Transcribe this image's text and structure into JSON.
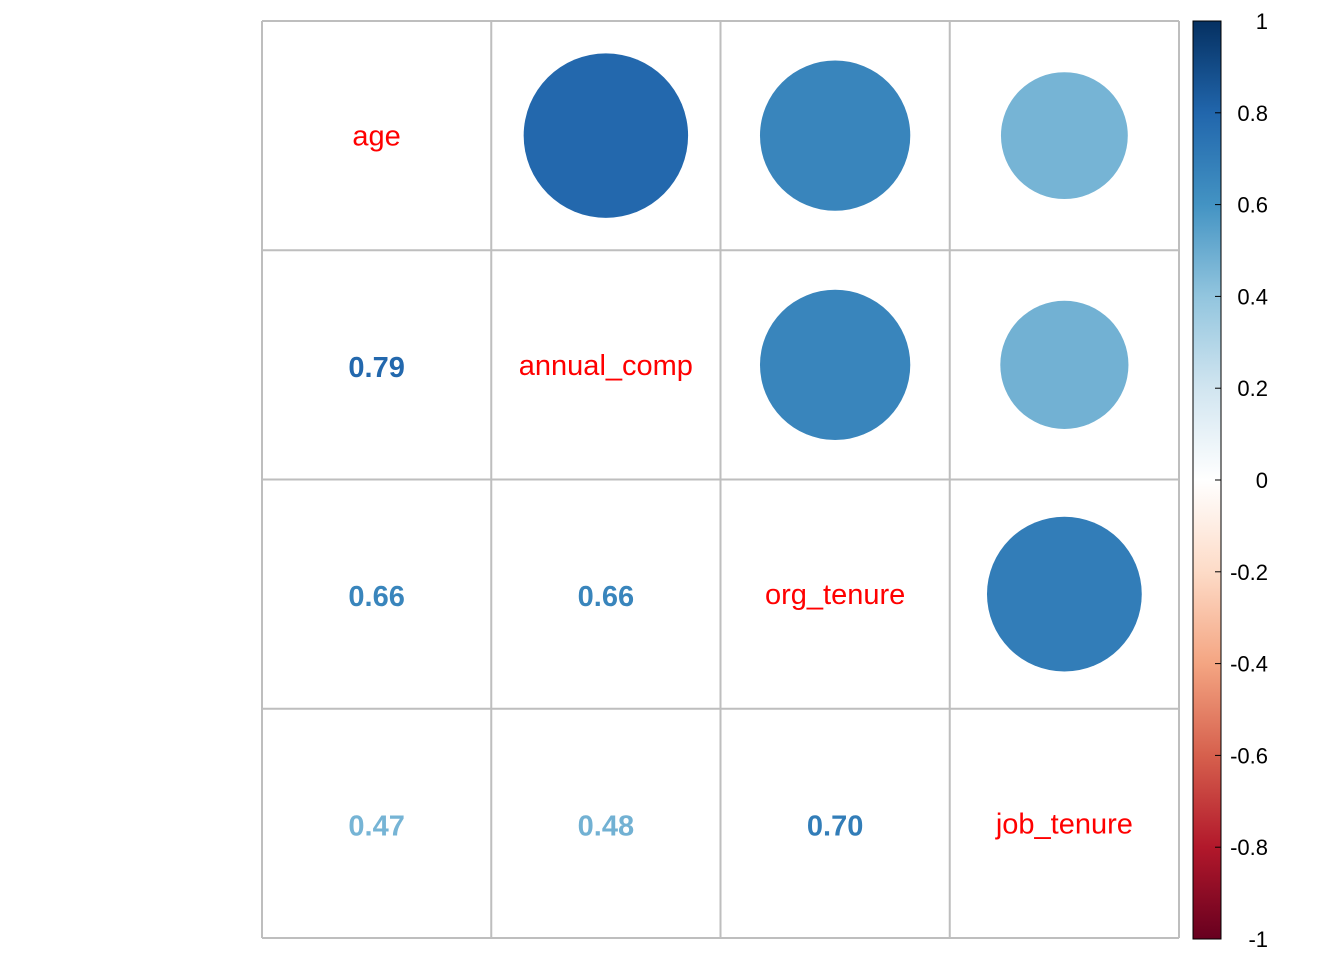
{
  "chart_data": {
    "type": "heatmap",
    "variables": [
      "age",
      "annual_comp",
      "org_tenure",
      "job_tenure"
    ],
    "matrix": [
      [
        1.0,
        0.79,
        0.66,
        0.47
      ],
      [
        0.79,
        1.0,
        0.66,
        0.48
      ],
      [
        0.66,
        0.66,
        1.0,
        0.7
      ],
      [
        0.47,
        0.48,
        0.7,
        1.0
      ]
    ],
    "lower_labels": [
      {
        "row": 1,
        "col": 0,
        "text": "0.79"
      },
      {
        "row": 2,
        "col": 0,
        "text": "0.66"
      },
      {
        "row": 2,
        "col": 1,
        "text": "0.66"
      },
      {
        "row": 3,
        "col": 0,
        "text": "0.47"
      },
      {
        "row": 3,
        "col": 1,
        "text": "0.48"
      },
      {
        "row": 3,
        "col": 2,
        "text": "0.70"
      }
    ],
    "upper_method": "circle",
    "lower_method": "number",
    "diagonal": "variable names",
    "colorbar": {
      "range": [
        -1,
        1
      ],
      "ticks": [
        "1",
        "0.8",
        "0.6",
        "0.4",
        "0.2",
        "0",
        "-0.2",
        "-0.4",
        "-0.6",
        "-0.8",
        "-1"
      ],
      "tick_values": [
        1,
        0.8,
        0.6,
        0.4,
        0.2,
        0,
        -0.2,
        -0.4,
        -0.6,
        -0.8,
        -1
      ],
      "colors": [
        "#67001F",
        "#B2182B",
        "#D6604D",
        "#F4A582",
        "#FDDBC7",
        "#FFFFFF",
        "#D1E5F0",
        "#92C5DE",
        "#4393C3",
        "#2166AC",
        "#053061"
      ]
    },
    "diagonal_label_color": "#FF0000",
    "grid_color": "#BEBEBE"
  }
}
